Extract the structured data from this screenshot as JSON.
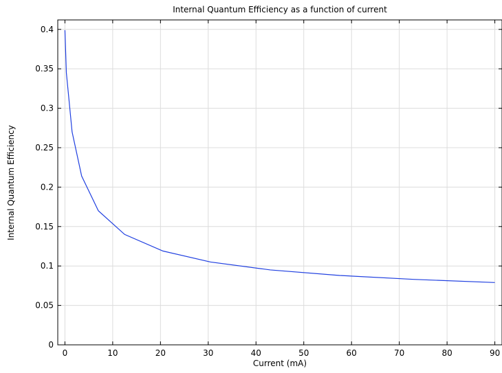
{
  "chart_data": {
    "type": "line",
    "title": "Internal Quantum Efficiency as a function of current",
    "xlabel": "Current (mA)",
    "ylabel": "Internal Quantum Efficiency",
    "xlim": [
      -1.5,
      91.5
    ],
    "ylim": [
      0,
      0.412
    ],
    "xticks": [
      0,
      10,
      20,
      30,
      40,
      50,
      60,
      70,
      80,
      90
    ],
    "yticks": [
      0,
      0.05,
      0.1,
      0.15,
      0.2,
      0.25,
      0.3,
      0.35,
      0.4
    ],
    "xtick_labels": [
      "0",
      "10",
      "20",
      "30",
      "40",
      "50",
      "60",
      "70",
      "80",
      "90"
    ],
    "ytick_labels": [
      "0",
      "0.05",
      "0.1",
      "0.15",
      "0.2",
      "0.25",
      "0.3",
      "0.35",
      "0.4"
    ],
    "grid": true,
    "series": [
      {
        "color": "#1f3fe0",
        "x": [
          0,
          0.3,
          0.7,
          1.5,
          3.5,
          7.0,
          12.5,
          20.5,
          30.5,
          43.0,
          57.5,
          73.0,
          90.0
        ],
        "y": [
          0.399,
          0.345,
          0.32,
          0.27,
          0.214,
          0.17,
          0.14,
          0.119,
          0.105,
          0.095,
          0.088,
          0.083,
          0.079
        ]
      }
    ]
  }
}
